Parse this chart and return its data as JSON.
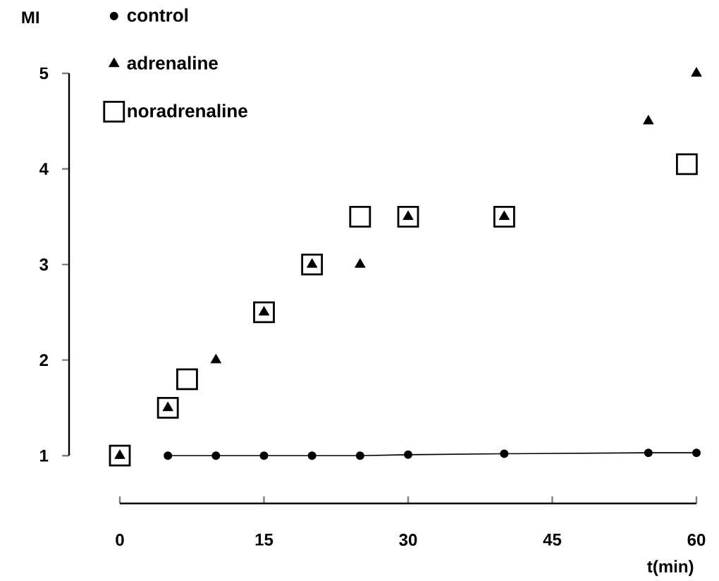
{
  "chart_data": {
    "type": "scatter",
    "ylabel": "MI",
    "xlabel": "t(min)",
    "xlim": [
      0,
      60
    ],
    "xticks": [
      0,
      15,
      30,
      45,
      60
    ],
    "ylim": [
      0.5,
      5
    ],
    "yticks": [
      1,
      2,
      3,
      4,
      5
    ],
    "legend": "top left",
    "grid": false,
    "series": [
      {
        "name": "control",
        "type": "line",
        "marker": "circle",
        "color": "#000000",
        "x": [
          5,
          10,
          15,
          20,
          25,
          30,
          40,
          55,
          60
        ],
        "values": [
          1.0,
          1.0,
          1.0,
          1.0,
          1.0,
          1.01,
          1.02,
          1.03,
          1.03
        ]
      },
      {
        "name": "adrenaline",
        "marker": "triangle",
        "color": "#000000",
        "x": [
          0,
          5,
          10,
          15,
          20,
          25,
          30,
          40,
          55,
          60
        ],
        "values": [
          1.0,
          1.5,
          2.0,
          2.5,
          3.0,
          3.0,
          3.5,
          3.5,
          4.5,
          5.0
        ]
      },
      {
        "name": "noradrenaline",
        "marker": "square",
        "color": "#000000",
        "x": [
          0,
          5,
          7,
          15,
          20,
          25,
          30,
          40,
          59
        ],
        "values": [
          1.0,
          1.5,
          1.8,
          2.5,
          3.0,
          3.5,
          3.5,
          3.5,
          4.05
        ]
      }
    ]
  }
}
